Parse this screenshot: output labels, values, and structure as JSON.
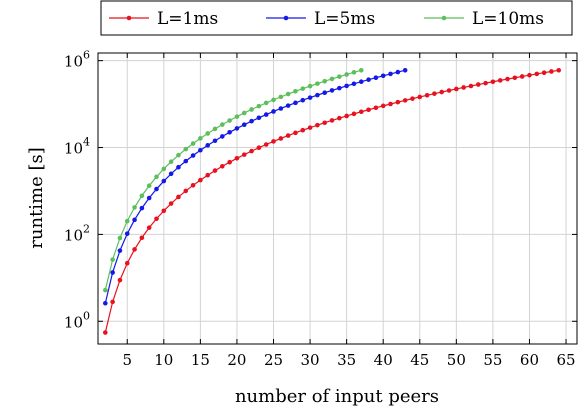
{
  "chart_data": {
    "type": "line",
    "title": "",
    "xlabel": "number of input peers",
    "ylabel": "runtime [s]",
    "x_ticks": [
      "5",
      "10",
      "15",
      "20",
      "25",
      "30",
      "35",
      "40",
      "45",
      "50",
      "55",
      "60",
      "65"
    ],
    "y_ticks": [
      {
        "base": "10",
        "exp": "0",
        "value": 1
      },
      {
        "base": "10",
        "exp": "2",
        "value": 100
      },
      {
        "base": "10",
        "exp": "4",
        "value": 10000
      },
      {
        "base": "10",
        "exp": "6",
        "value": 1000000
      }
    ],
    "xlim": [
      1,
      66.5
    ],
    "ylim": [
      0.3,
      1500000
    ],
    "yscale": "log",
    "grid": true,
    "legend": "top-center, horizontal, outside plot",
    "series": [
      {
        "name": "L=1ms",
        "color": "#e8121f",
        "x_start": 2,
        "x_end": 64,
        "y_start": 0.55,
        "y_end": 600000
      },
      {
        "name": "L=5ms",
        "color": "#1419e6",
        "x_start": 2,
        "x_end": 43,
        "y_start": 2.6,
        "y_end": 600000
      },
      {
        "name": "L=10ms",
        "color": "#5cbf5c",
        "x_start": 2,
        "x_end": 37,
        "y_start": 5.2,
        "y_end": 600000
      }
    ]
  }
}
